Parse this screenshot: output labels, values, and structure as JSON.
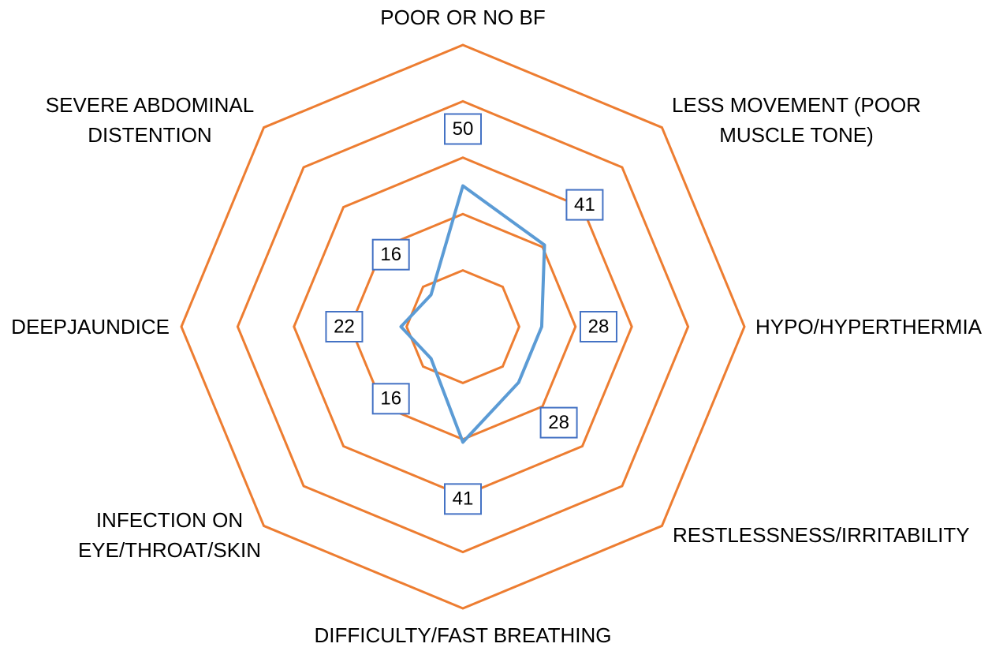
{
  "chart_data": {
    "type": "radar",
    "categories": [
      "POOR OR NO BF",
      "LESS MOVEMENT (POOR MUSCLE TONE)",
      "HYPO/HYPERTHERMIA",
      "RESTLESSNESS/IRRITABILITY",
      "DIFFICULTY/FAST BREATHING",
      "INFECTION ON EYE/THROAT/SKIN",
      "DEEPJAUNDICE",
      "SEVERE ABDOMINAL DISTENTION"
    ],
    "values": [
      50,
      41,
      28,
      28,
      41,
      16,
      22,
      16
    ],
    "color": "#5b9bd5",
    "grid_color": "#ed7d31",
    "label_border_color": "#4472c4",
    "ylim": [
      0,
      100
    ],
    "yticks": [
      0,
      20,
      40,
      60,
      80,
      100
    ],
    "grid": true
  }
}
